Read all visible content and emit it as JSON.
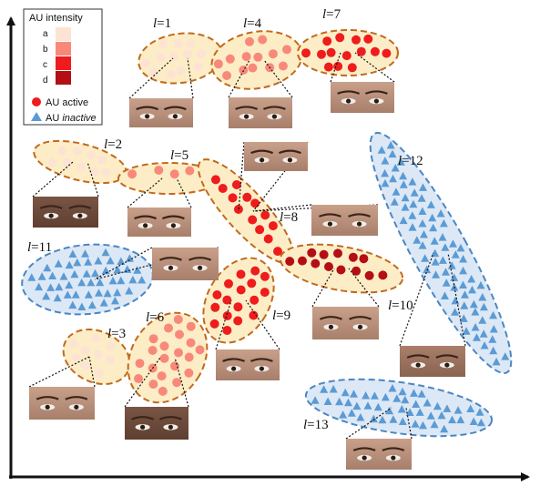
{
  "legend": {
    "title": "AU intensity",
    "levels": [
      {
        "label": "a",
        "color": "#fde3d3"
      },
      {
        "label": "b",
        "color": "#f8897a"
      },
      {
        "label": "c",
        "color": "#ee1c1c"
      },
      {
        "label": "d",
        "color": "#b30f14"
      }
    ],
    "active_label": "AU active",
    "inactive_prefix": "AU ",
    "inactive_word": "inactive",
    "active_color": "#ee1c1c",
    "inactive_color": "#5b9bd5"
  },
  "colors": {
    "active_cluster_fill": "#fdedc6",
    "active_cluster_stroke": "#c06a1c",
    "inactive_cluster_fill": "#dce8f5",
    "inactive_cluster_stroke": "#4a86c5"
  },
  "clusters": [
    {
      "id": "1",
      "l": "l",
      "eq": "=1",
      "state": "active",
      "intensity": "a"
    },
    {
      "id": "2",
      "l": "l",
      "eq": "=2",
      "state": "active",
      "intensity": "a"
    },
    {
      "id": "3",
      "l": "l",
      "eq": "=3",
      "state": "active",
      "intensity": "a"
    },
    {
      "id": "4",
      "l": "l",
      "eq": "=4",
      "state": "active",
      "intensity": "b"
    },
    {
      "id": "5",
      "l": "l",
      "eq": "=5",
      "state": "active",
      "intensity": "b"
    },
    {
      "id": "6",
      "l": "l",
      "eq": "=6",
      "state": "active",
      "intensity": "b"
    },
    {
      "id": "7",
      "l": "l",
      "eq": "=7",
      "state": "active",
      "intensity": "c"
    },
    {
      "id": "8",
      "l": "l",
      "eq": "=8",
      "state": "active",
      "intensity": "c"
    },
    {
      "id": "9",
      "l": "l",
      "eq": "=9",
      "state": "active",
      "intensity": "c"
    },
    {
      "id": "10",
      "l": "l",
      "eq": "=10",
      "state": "active",
      "intensity": "d"
    },
    {
      "id": "11",
      "l": "l",
      "eq": "=11",
      "state": "inactive",
      "intensity": ""
    },
    {
      "id": "12",
      "l": "l",
      "eq": "=12",
      "state": "inactive",
      "intensity": ""
    },
    {
      "id": "13",
      "l": "l",
      "eq": "=13",
      "state": "inactive",
      "intensity": ""
    }
  ]
}
